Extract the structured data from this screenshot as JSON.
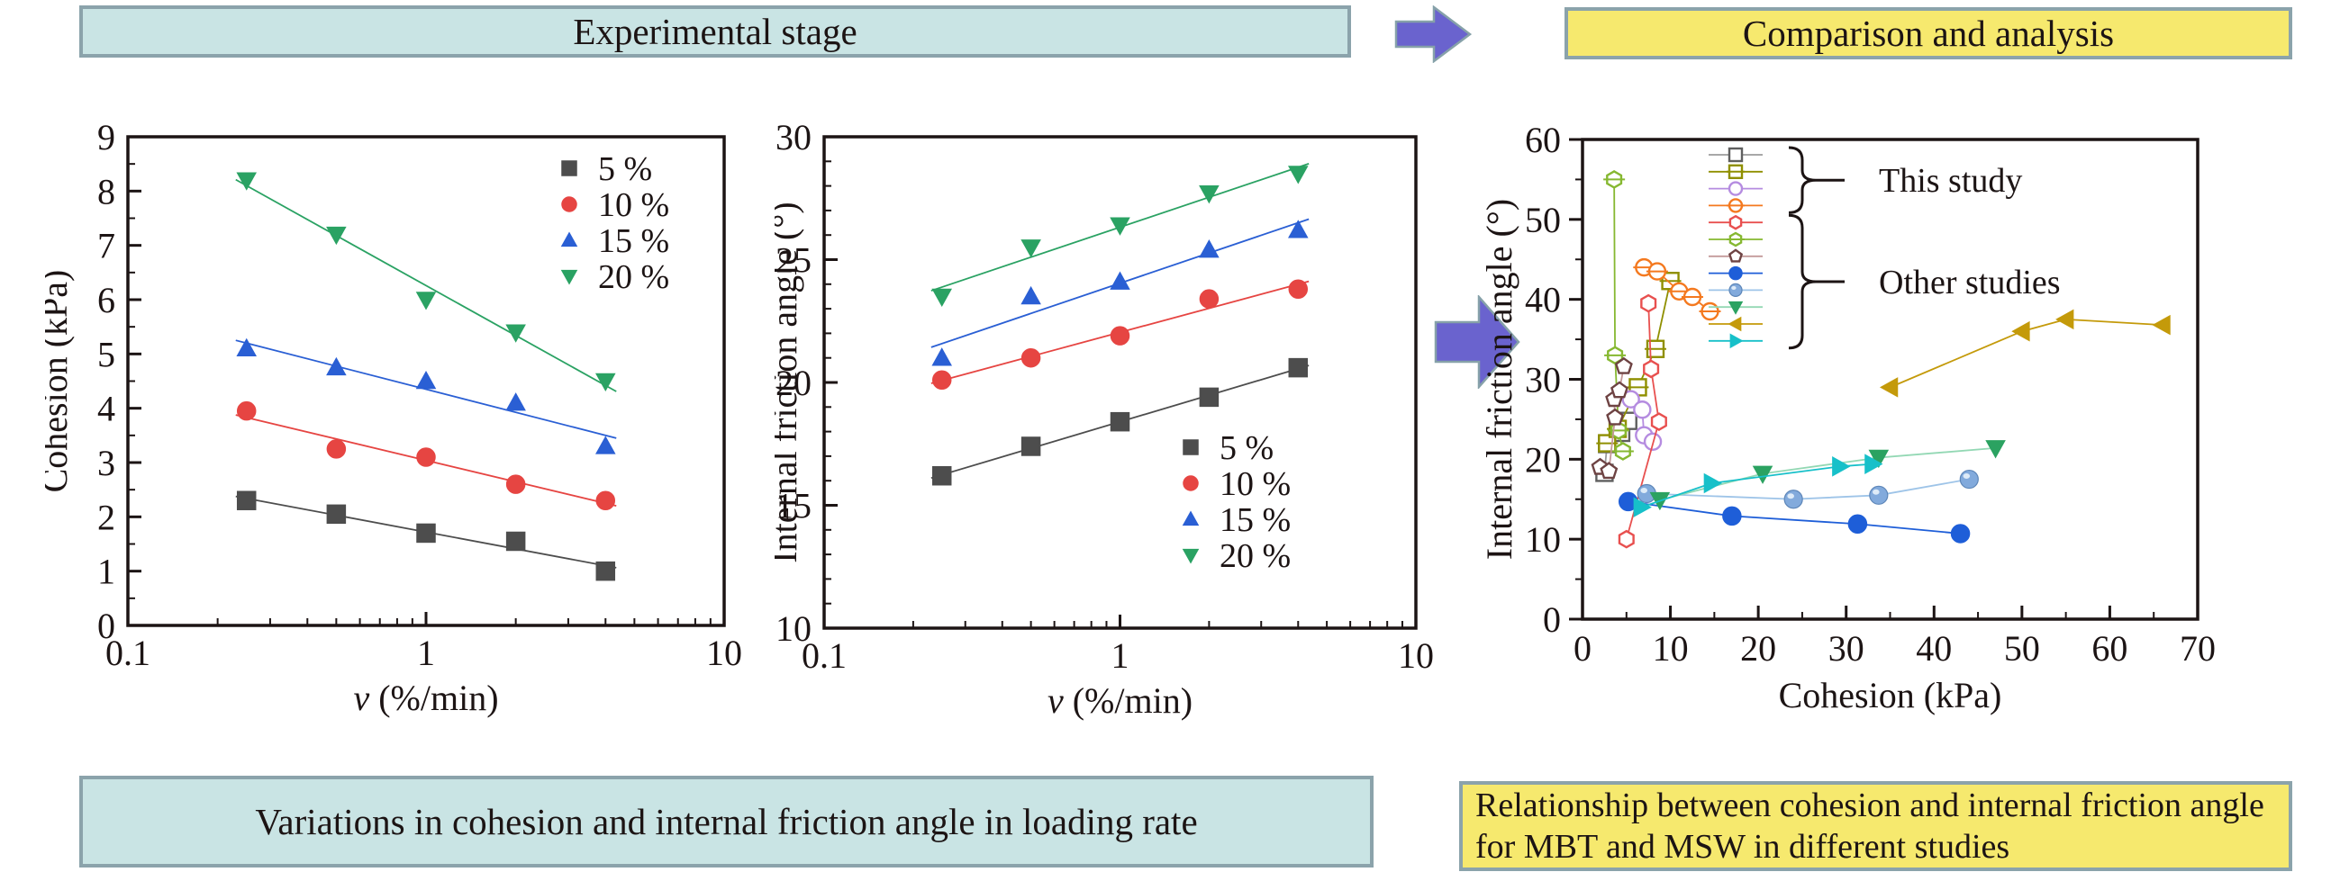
{
  "header": {
    "experimental_stage": "Experimental stage",
    "comparison_analysis": "Comparison and analysis"
  },
  "footer": {
    "left_caption": "Variations in cohesion and internal friction angle in loading rate",
    "right_caption": "Relationship between cohesion and internal friction angle for MBT and MSW in different studies"
  },
  "colors": {
    "teal_box_bg": "#c9e4e4",
    "yellow_box_bg": "#f6e96e",
    "box_border": "#8ba3ab",
    "arrow_fill": "#6a63ce",
    "arrow_stroke": "#86a1a9",
    "series_5": "#4d4d4d",
    "series_10": "#e64542",
    "series_15": "#2a5fd4",
    "series_20": "#2aa263"
  },
  "chart_data": [
    {
      "id": "cohesion-vs-loading-rate",
      "type": "scatter",
      "x_scale": "log",
      "xlabel_italic": "v",
      "xlabel_rest": " (%/min)",
      "ylabel": "Cohesion (kPa)",
      "xlim": [
        0.1,
        10
      ],
      "ylim": [
        0,
        9
      ],
      "x_tick_values": [
        0.1,
        1,
        10
      ],
      "x_tick_labels": [
        "0.1",
        "1",
        "10"
      ],
      "y_tick_step": 1,
      "y_minor_step": 0.5,
      "grid": false,
      "legend_position": "top-right",
      "x": [
        0.25,
        0.5,
        1,
        2,
        4
      ],
      "series": [
        {
          "label": "5 %",
          "marker": "square",
          "color": "#4d4d4d",
          "values": [
            2.3,
            2.05,
            1.7,
            1.55,
            1.0
          ],
          "trend": true
        },
        {
          "label": "10 %",
          "marker": "circle",
          "color": "#e64542",
          "values": [
            3.95,
            3.25,
            3.1,
            2.6,
            2.3
          ],
          "trend": true
        },
        {
          "label": "15 %",
          "marker": "triangle-up",
          "color": "#2a5fd4",
          "values": [
            5.1,
            4.75,
            4.5,
            4.1,
            3.3
          ],
          "trend": true
        },
        {
          "label": "20 %",
          "marker": "triangle-down",
          "color": "#2aa263",
          "values": [
            8.2,
            7.2,
            6.0,
            5.4,
            4.5
          ],
          "trend": true
        }
      ]
    },
    {
      "id": "friction-angle-vs-loading-rate",
      "type": "scatter",
      "x_scale": "log",
      "xlabel_italic": "v",
      "xlabel_rest": " (%/min)",
      "ylabel": "Internal friction angle (°)",
      "xlim": [
        0.1,
        10
      ],
      "ylim": [
        10,
        30
      ],
      "x_tick_values": [
        0.1,
        1,
        10
      ],
      "x_tick_labels": [
        "0.1",
        "1",
        "10"
      ],
      "y_tick_step": 5,
      "y_minor_step": 1,
      "grid": false,
      "legend_position": "bottom-right",
      "x": [
        0.25,
        0.5,
        1,
        2,
        4
      ],
      "series": [
        {
          "label": "5 %",
          "marker": "square",
          "color": "#4d4d4d",
          "values": [
            16.2,
            17.4,
            18.4,
            19.4,
            20.6
          ],
          "trend": true
        },
        {
          "label": "10 %",
          "marker": "circle",
          "color": "#e64542",
          "values": [
            20.1,
            21.0,
            21.9,
            23.4,
            23.8
          ],
          "trend": true
        },
        {
          "label": "15 %",
          "marker": "triangle-up",
          "color": "#2a5fd4",
          "values": [
            21.0,
            23.5,
            24.1,
            25.4,
            26.2
          ],
          "trend": true
        },
        {
          "label": "20 %",
          "marker": "triangle-down",
          "color": "#2aa263",
          "values": [
            23.5,
            25.5,
            26.4,
            27.7,
            28.5
          ],
          "trend": true
        }
      ]
    },
    {
      "id": "friction-angle-vs-cohesion-comparison",
      "type": "scatter",
      "x_scale": "linear",
      "xlabel": "Cohesion (kPa)",
      "ylabel": "Internal friction angle (°)",
      "xlim": [
        0,
        70
      ],
      "ylim": [
        0,
        60
      ],
      "x_tick_step": 10,
      "x_minor_step": 5,
      "y_tick_step": 10,
      "y_minor_step": 5,
      "grid": false,
      "legend_groups": [
        {
          "label": "This study",
          "count": 4
        },
        {
          "label": "Other studies",
          "count": 8
        }
      ],
      "series": [
        {
          "group": "This study",
          "marker": "square",
          "open": true,
          "color": "#5f5f5f",
          "line": "#9b9b9b",
          "points": [
            [
              2.5,
              18.3
            ],
            [
              2.8,
              21.9
            ],
            [
              4.4,
              23.3
            ],
            [
              5.2,
              24.8
            ]
          ]
        },
        {
          "group": "This study",
          "marker": "square",
          "open": true,
          "line_through": true,
          "color": "#8f8f00",
          "points": [
            [
              2.8,
              22.0
            ],
            [
              4.0,
              23.8
            ],
            [
              6.3,
              29.0
            ],
            [
              8.3,
              33.8
            ],
            [
              10.0,
              42.3
            ]
          ]
        },
        {
          "group": "This study",
          "marker": "circle",
          "open": true,
          "color": "#b58ce0",
          "points": [
            [
              5.5,
              27.5
            ],
            [
              6.8,
              26.2
            ],
            [
              7.0,
              23.0
            ],
            [
              8.0,
              22.2
            ]
          ]
        },
        {
          "group": "This study",
          "marker": "circle",
          "open": true,
          "line_through": true,
          "color": "#f4791f",
          "points": [
            [
              7.0,
              44.0
            ],
            [
              8.5,
              43.5
            ],
            [
              11.0,
              41.0
            ],
            [
              12.5,
              40.3
            ],
            [
              14.5,
              38.5
            ]
          ]
        },
        {
          "group": "Other studies",
          "marker": "hexagon",
          "open": true,
          "color": "#e8504f",
          "points": [
            [
              5.0,
              10.0
            ],
            [
              8.7,
              24.7
            ],
            [
              7.8,
              31.3
            ],
            [
              7.5,
              39.5
            ]
          ]
        },
        {
          "group": "Other studies",
          "marker": "hexagon",
          "open": true,
          "line_through": true,
          "color": "#86b831",
          "points": [
            [
              3.6,
              55.0
            ],
            [
              3.7,
              33.0
            ],
            [
              4.1,
              23.6
            ],
            [
              4.6,
              21.0
            ]
          ]
        },
        {
          "group": "Other studies",
          "marker": "pentagon",
          "open": true,
          "color": "#6e4343",
          "line": "#c49a9a",
          "points": [
            [
              2.0,
              19.0
            ],
            [
              3.0,
              18.5
            ],
            [
              3.7,
              25.2
            ],
            [
              3.6,
              27.5
            ],
            [
              4.2,
              28.6
            ],
            [
              4.7,
              31.6
            ]
          ]
        },
        {
          "group": "Other studies",
          "marker": "circle",
          "open": false,
          "color": "#1e5ed8",
          "points": [
            [
              5.2,
              14.7
            ],
            [
              17.0,
              12.9
            ],
            [
              31.3,
              11.9
            ],
            [
              43.0,
              10.7
            ]
          ]
        },
        {
          "group": "Other studies",
          "marker": "sphere",
          "open": false,
          "color": "#82aadc",
          "line": "#9ec4e8",
          "points": [
            [
              7.3,
              15.7
            ],
            [
              24.0,
              15.0
            ],
            [
              33.7,
              15.5
            ],
            [
              44.0,
              17.5
            ]
          ]
        },
        {
          "group": "Other studies",
          "marker": "triangle-down",
          "open": false,
          "color": "#2ba261",
          "line": "#93d8b4",
          "points": [
            [
              8.8,
              14.9
            ],
            [
              20.5,
              18.2
            ],
            [
              33.7,
              20.2
            ],
            [
              47.0,
              21.4
            ]
          ]
        },
        {
          "group": "Other studies",
          "marker": "triangle-left",
          "open": false,
          "color": "#c49a0a",
          "points": [
            [
              35.0,
              29.0
            ],
            [
              50.0,
              36.0
            ],
            [
              55.0,
              37.5
            ],
            [
              66.0,
              36.8
            ]
          ]
        },
        {
          "group": "Other studies",
          "marker": "triangle-right",
          "open": false,
          "color": "#17c0c9",
          "points": [
            [
              6.7,
              14.0
            ],
            [
              14.7,
              17.0
            ],
            [
              29.3,
              19.1
            ],
            [
              33.0,
              19.4
            ]
          ]
        }
      ]
    }
  ]
}
